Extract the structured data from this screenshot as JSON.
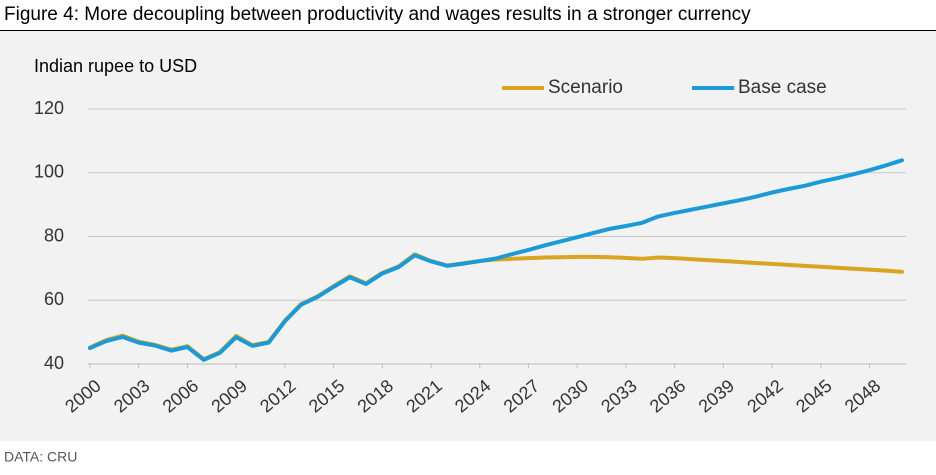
{
  "chart_data": {
    "type": "line",
    "title": "Figure 4: More decoupling between productivity and wages results in a stronger currency",
    "y_label": "Indian rupee to USD",
    "source": "DATA: CRU",
    "x": [
      2000,
      2001,
      2002,
      2003,
      2004,
      2005,
      2006,
      2007,
      2008,
      2009,
      2010,
      2011,
      2012,
      2013,
      2014,
      2015,
      2016,
      2017,
      2018,
      2019,
      2020,
      2021,
      2022,
      2023,
      2024,
      2025,
      2026,
      2027,
      2028,
      2029,
      2030,
      2031,
      2032,
      2033,
      2034,
      2035,
      2036,
      2037,
      2038,
      2039,
      2040,
      2041,
      2042,
      2043,
      2044,
      2045,
      2046,
      2047,
      2048,
      2049,
      2050
    ],
    "series": [
      {
        "name": "Scenario",
        "color": "#d9a521",
        "values": [
          45.2,
          47.5,
          48.9,
          47.0,
          46.0,
          44.5,
          45.6,
          41.5,
          43.7,
          48.8,
          45.9,
          46.9,
          53.6,
          58.8,
          61.2,
          64.4,
          67.5,
          65.3,
          68.6,
          70.6,
          74.4,
          72.3,
          70.9,
          71.6,
          72.3,
          72.8,
          73.0,
          73.2,
          73.4,
          73.5,
          73.6,
          73.6,
          73.5,
          73.3,
          73.0,
          73.4,
          73.2,
          72.9,
          72.6,
          72.3,
          72.0,
          71.7,
          71.4,
          71.1,
          70.8,
          70.5,
          70.2,
          69.9,
          69.6,
          69.3,
          68.9
        ]
      },
      {
        "name": "Base case",
        "color": "#1a9bd7",
        "values": [
          45.0,
          47.2,
          48.5,
          46.7,
          45.8,
          44.2,
          45.3,
          41.3,
          43.5,
          48.4,
          45.7,
          46.7,
          53.4,
          58.6,
          61.0,
          64.2,
          67.2,
          65.1,
          68.4,
          70.4,
          74.1,
          72.2,
          70.8,
          71.5,
          72.3,
          73.1,
          74.5,
          75.8,
          77.2,
          78.5,
          79.8,
          81.1,
          82.4,
          83.3,
          84.3,
          86.3,
          87.4,
          88.4,
          89.4,
          90.4,
          91.4,
          92.5,
          93.8,
          94.9,
          95.9,
          97.2,
          98.3,
          99.5,
          100.8,
          102.3,
          103.9
        ]
      }
    ],
    "xlim": [
      2000,
      2050
    ],
    "xticks": [
      2000,
      2003,
      2006,
      2009,
      2012,
      2015,
      2018,
      2021,
      2024,
      2027,
      2030,
      2033,
      2036,
      2039,
      2042,
      2045,
      2048
    ],
    "ylim": [
      40,
      120
    ],
    "yticks": [
      40,
      60,
      80,
      100,
      120
    ],
    "grid": true,
    "legend": "top-right"
  }
}
